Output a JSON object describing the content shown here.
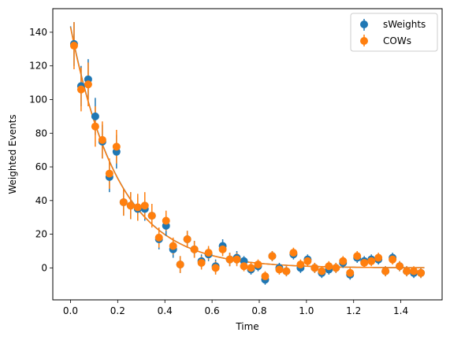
{
  "chart_data": {
    "type": "scatter",
    "xlabel": "Time",
    "ylabel": "Weighted Events",
    "xlim": [
      -0.075,
      1.575
    ],
    "ylim": [
      -19,
      154
    ],
    "xticks": [
      0.0,
      0.2,
      0.4,
      0.6,
      0.8,
      1.0,
      1.2,
      1.4
    ],
    "xtick_labels": [
      "0.0",
      "0.2",
      "0.4",
      "0.6",
      "0.8",
      "1.0",
      "1.2",
      "1.4"
    ],
    "yticks": [
      0,
      20,
      40,
      60,
      80,
      100,
      120,
      140
    ],
    "ytick_labels": [
      "0",
      "20",
      "40",
      "60",
      "80",
      "100",
      "120",
      "140"
    ],
    "grid": false,
    "legend_position": "top-right",
    "x": [
      0.015,
      0.045,
      0.075,
      0.105,
      0.135,
      0.165,
      0.195,
      0.225,
      0.255,
      0.285,
      0.315,
      0.345,
      0.375,
      0.405,
      0.435,
      0.465,
      0.495,
      0.525,
      0.555,
      0.585,
      0.615,
      0.645,
      0.675,
      0.705,
      0.735,
      0.765,
      0.795,
      0.825,
      0.855,
      0.885,
      0.915,
      0.945,
      0.975,
      1.005,
      1.035,
      1.065,
      1.095,
      1.125,
      1.155,
      1.185,
      1.215,
      1.245,
      1.275,
      1.305,
      1.335,
      1.365,
      1.395,
      1.425,
      1.455,
      1.485
    ],
    "series": [
      {
        "name": "sWeights",
        "color": "#1f77b4",
        "values": [
          133,
          108,
          112,
          90,
          75,
          54,
          69,
          39,
          37,
          35,
          35,
          31,
          17,
          25,
          11,
          2,
          17,
          11,
          4,
          8,
          1,
          13,
          5,
          6,
          4,
          -1,
          1,
          -7,
          7,
          0,
          -2,
          8,
          0,
          5,
          0,
          -3,
          -1,
          0,
          3,
          -4,
          6,
          4,
          5,
          5,
          -2,
          6,
          1,
          -2,
          -3,
          -3
        ],
        "errors": [
          13,
          12,
          12,
          11,
          10,
          9,
          10,
          8,
          8,
          7,
          7,
          7,
          6,
          6,
          5,
          5,
          5,
          5,
          4,
          4,
          4,
          4,
          4,
          4,
          3,
          3,
          3,
          3,
          3,
          3,
          3,
          3,
          3,
          3,
          3,
          3,
          3,
          3,
          3,
          3,
          3,
          3,
          3,
          3,
          3,
          3,
          3,
          3,
          3,
          3
        ]
      },
      {
        "name": "COWs",
        "color": "#ff7f0e",
        "values": [
          132,
          106,
          109,
          84,
          76,
          56,
          72,
          39,
          37,
          36,
          37,
          31,
          18,
          28,
          13,
          2,
          17,
          11,
          3,
          9,
          0,
          11,
          5,
          5,
          1,
          0,
          2,
          -5,
          7,
          -1,
          -2,
          9,
          2,
          4,
          0,
          -2,
          1,
          0,
          4,
          -3,
          7,
          3,
          4,
          6,
          -2,
          5,
          1,
          -2,
          -2,
          -3
        ],
        "errors": [
          14,
          13,
          13,
          12,
          11,
          9,
          10,
          8,
          8,
          8,
          8,
          7,
          6,
          6,
          5,
          5,
          5,
          5,
          4,
          4,
          4,
          4,
          4,
          4,
          3,
          3,
          3,
          3,
          3,
          3,
          3,
          3,
          3,
          3,
          3,
          3,
          3,
          3,
          3,
          3,
          3,
          3,
          3,
          3,
          3,
          3,
          3,
          3,
          3,
          3
        ]
      }
    ],
    "fit_curves": [
      {
        "color": "#1f77b4",
        "amplitude": 143.5,
        "rate": 4.95,
        "offset": 0
      },
      {
        "color": "#ff7f0e",
        "amplitude": 143,
        "rate": 4.95,
        "offset": 0
      }
    ],
    "fit_xrange": [
      0,
      1.5
    ],
    "legend": [
      "sWeights",
      "COWs"
    ]
  }
}
